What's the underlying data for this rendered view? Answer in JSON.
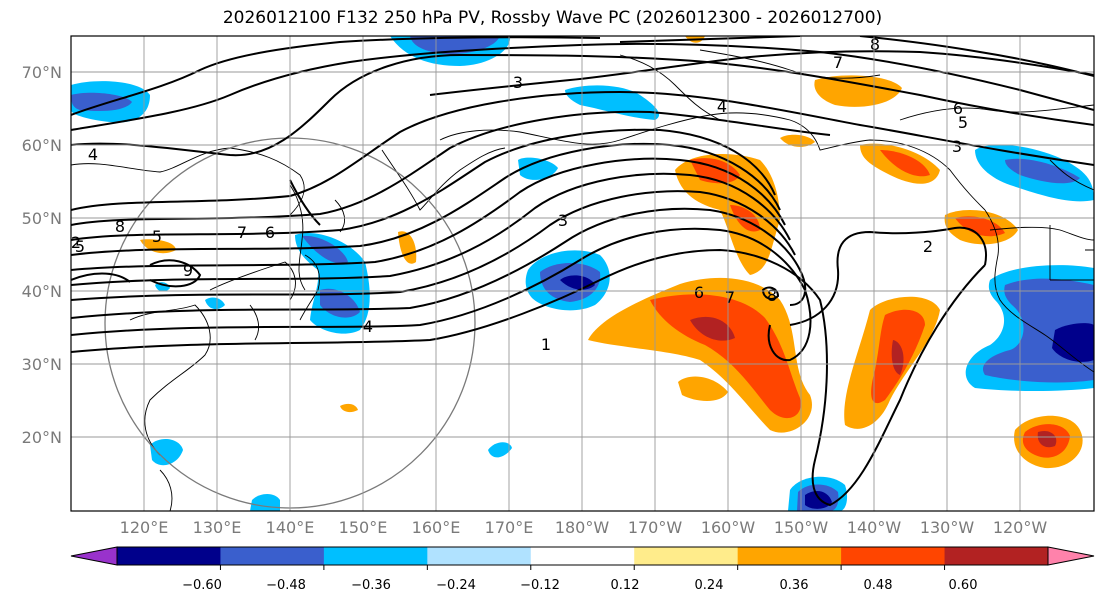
{
  "title": "2026012100 F132 250 hPa PV, Rossby Wave PC (2026012300 - 2026012700)",
  "lat_labels": [
    "70°N",
    "60°N",
    "50°N",
    "40°N",
    "30°N",
    "20°N"
  ],
  "lon_labels": [
    "120°E",
    "130°E",
    "140°E",
    "150°E",
    "160°E",
    "170°E",
    "180°W",
    "170°W",
    "160°W",
    "150°W",
    "140°W",
    "130°W",
    "120°W"
  ],
  "colorbar": {
    "tick_labels": [
      "−0.60",
      "−0.48",
      "−0.36",
      "−0.24",
      "−0.12",
      "0.12",
      "0.24",
      "0.36",
      "0.48",
      "0.60"
    ],
    "colors": [
      "#9932cc",
      "#00008b",
      "#3a5fcd",
      "#00bfff",
      "#b0e2ff",
      "#ffffff",
      "#ffec8b",
      "#ffa500",
      "#ff4500",
      "#b22222",
      "#ff82ab"
    ]
  },
  "contour_labels": [
    "8",
    "7",
    "6",
    "5",
    "3",
    "4",
    "5",
    "6",
    "7",
    "8",
    "5",
    "9",
    "4",
    "3",
    "2",
    "1",
    "6",
    "7",
    "8",
    "3",
    "2",
    "4"
  ],
  "colors": {
    "positive": "#ffa500",
    "strong_positive": "#ff4500",
    "max_positive": "#b22222",
    "negative": "#00bfff",
    "strong_negative": "#3a5fcd",
    "max_negative": "#00008b"
  }
}
